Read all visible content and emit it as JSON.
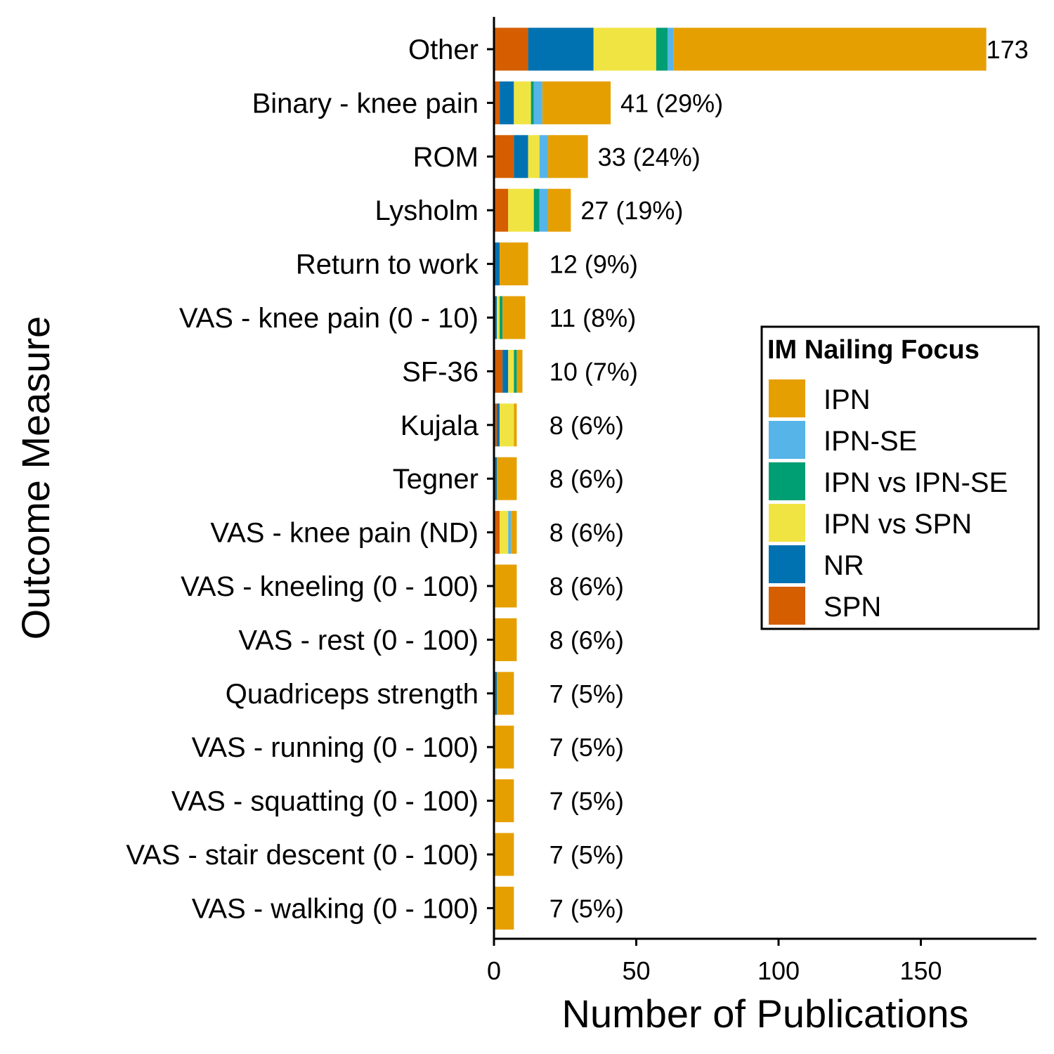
{
  "chart_data": {
    "type": "bar",
    "orientation": "horizontal",
    "stacked": true,
    "xlabel": "Number of Publications",
    "ylabel": "Outcome Measure",
    "xlim": [
      0,
      190
    ],
    "xticks": [
      0,
      50,
      100,
      150
    ],
    "grid": false,
    "legend": {
      "title": "IM Nailing Focus",
      "placement": "right"
    },
    "colors": {
      "IPN": "#E69F00",
      "IPN-SE": "#56B4E9",
      "IPN vs IPN-SE": "#009E73",
      "IPN vs SPN": "#F0E442",
      "NR": "#0072B2",
      "SPN": "#D55E00"
    },
    "legend_order": [
      "IPN",
      "IPN-SE",
      "IPN vs IPN-SE",
      "IPN vs SPN",
      "NR",
      "SPN"
    ],
    "stack_order": [
      "SPN",
      "NR",
      "IPN vs SPN",
      "IPN vs IPN-SE",
      "IPN-SE",
      "IPN"
    ],
    "categories": [
      "Other",
      "Binary - knee pain",
      "ROM",
      "Lysholm",
      "Return to work",
      "VAS - knee pain (0 - 10)",
      "SF-36",
      "Kujala",
      "Tegner",
      "VAS - knee pain (ND)",
      "VAS - kneeling (0 - 100)",
      "VAS - rest (0 - 100)",
      "Quadriceps strength",
      "VAS - running (0 - 100)",
      "VAS - squatting (0 - 100)",
      "VAS - stair descent (0 - 100)",
      "VAS - walking (0 - 100)"
    ],
    "totals": [
      173,
      41,
      33,
      27,
      12,
      11,
      10,
      8,
      8,
      8,
      8,
      8,
      7,
      7,
      7,
      7,
      7
    ],
    "value_labels": [
      "173",
      "41 (29%)",
      "33 (24%)",
      "27 (19%)",
      "12 (9%)",
      "11 (8%)",
      "10 (7%)",
      "8 (6%)",
      "8 (6%)",
      "8 (6%)",
      "8 (6%)",
      "8 (6%)",
      "7 (5%)",
      "7 (5%)",
      "7 (5%)",
      "7 (5%)",
      "7 (5%)"
    ],
    "series": [
      {
        "name": "SPN",
        "values": [
          12,
          2,
          7,
          5,
          0,
          0,
          3,
          1,
          0,
          2,
          0,
          0,
          0,
          0,
          0,
          0,
          0
        ]
      },
      {
        "name": "NR",
        "values": [
          23,
          5,
          5,
          0,
          2,
          1,
          2,
          1,
          1,
          0,
          0,
          0,
          1,
          0,
          0,
          0,
          0
        ]
      },
      {
        "name": "IPN vs SPN",
        "values": [
          22,
          6,
          4,
          9,
          0,
          1,
          2,
          5,
          0,
          3,
          0,
          0,
          0,
          0,
          0,
          0,
          0
        ]
      },
      {
        "name": "IPN vs IPN-SE",
        "values": [
          4,
          1,
          0,
          2,
          0,
          1,
          1,
          0,
          0,
          0,
          0,
          0,
          0,
          0,
          0,
          0,
          0
        ]
      },
      {
        "name": "IPN-SE",
        "values": [
          2,
          3,
          3,
          3,
          0,
          0,
          0,
          0,
          0,
          1,
          0,
          0,
          0,
          0,
          0,
          0,
          0
        ]
      },
      {
        "name": "IPN",
        "values": [
          110,
          24,
          14,
          8,
          10,
          8,
          2,
          1,
          7,
          2,
          8,
          8,
          6,
          7,
          7,
          7,
          7
        ]
      }
    ]
  }
}
